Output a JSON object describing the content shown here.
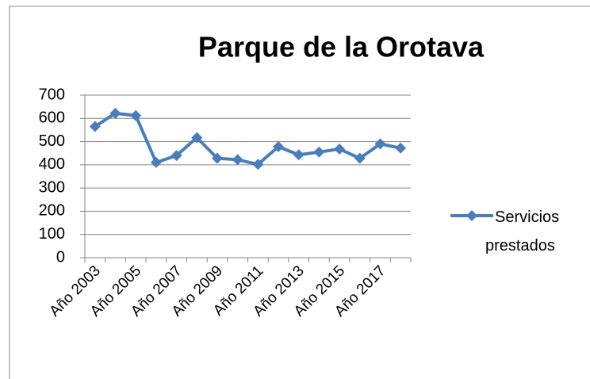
{
  "chart_data": {
    "type": "line",
    "title": "Parque de la Orotava",
    "categories": [
      "Año 2003",
      null,
      "Año 2005",
      null,
      "Año 2007",
      null,
      "Año 2009",
      null,
      "Año 2011",
      null,
      "Año 2013",
      null,
      "Año 2015",
      null,
      "Año 2017",
      null
    ],
    "series": [
      {
        "name": "Servicios prestados",
        "color": "#4a7ebb",
        "values": [
          565,
          622,
          612,
          410,
          440,
          517,
          428,
          422,
          402,
          478,
          443,
          455,
          468,
          428,
          490,
          472
        ]
      }
    ],
    "ylim": [
      0,
      700
    ],
    "yticks": [
      0,
      100,
      200,
      300,
      400,
      500,
      600,
      700
    ],
    "grid": true,
    "legend": "right"
  }
}
